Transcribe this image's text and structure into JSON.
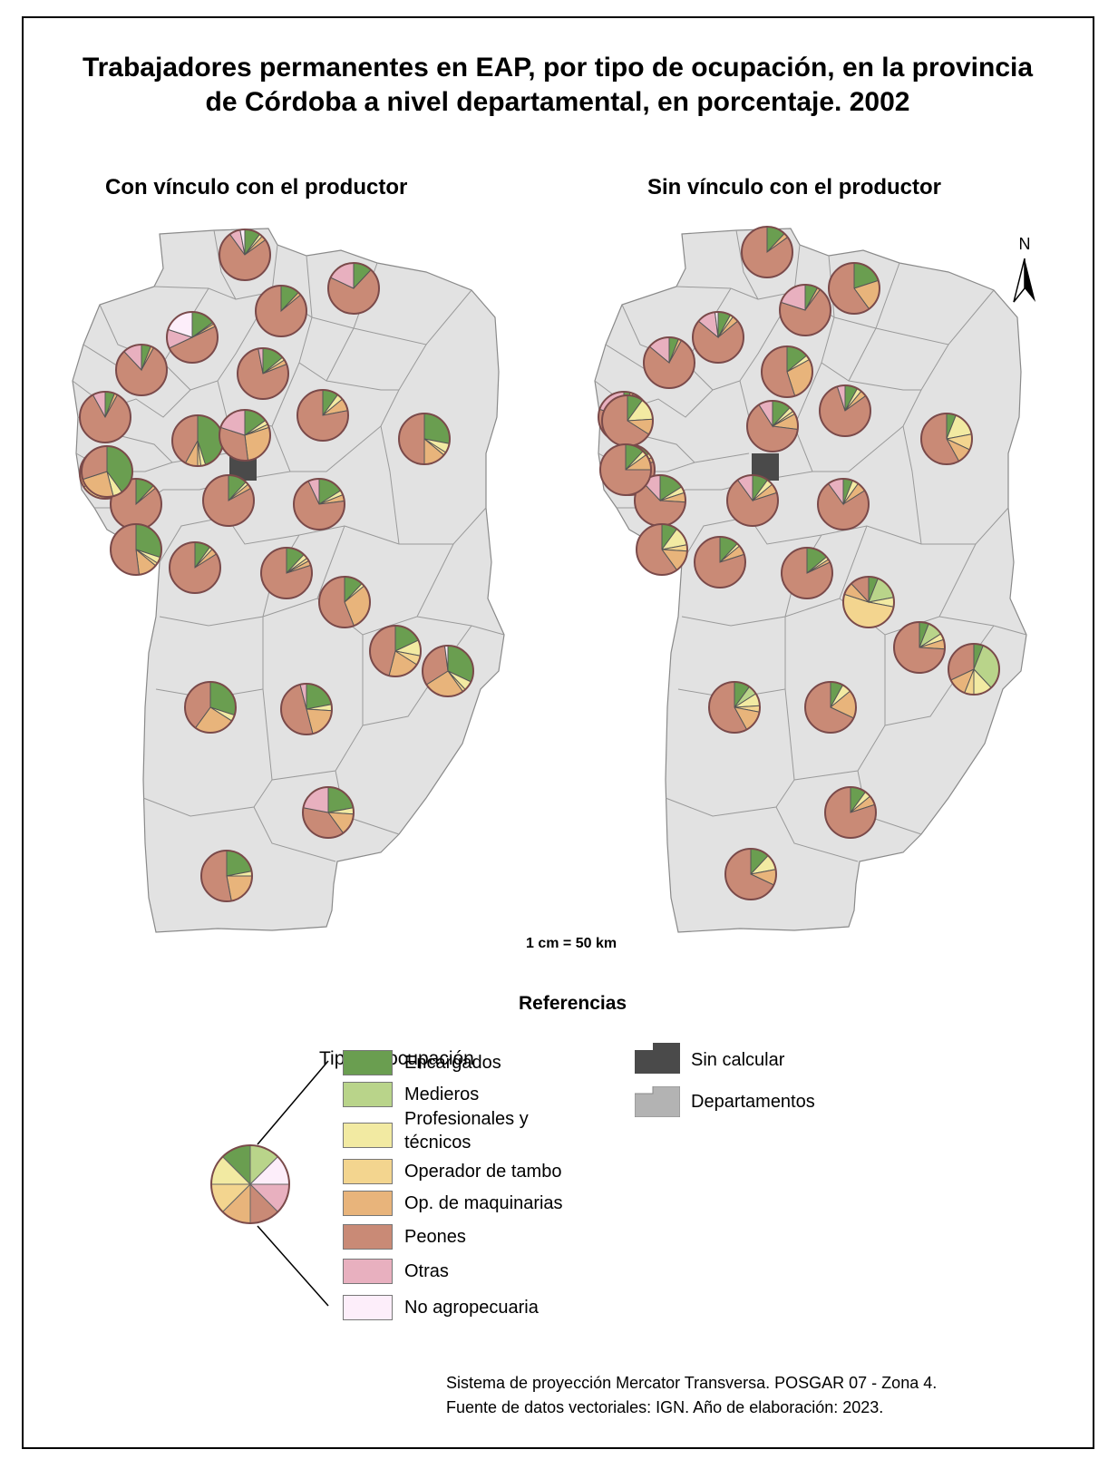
{
  "title_line1": "Trabajadores permanentes en EAP, por tipo de ocupación, en la provincia",
  "title_line2": "de Córdoba a nivel departamental, en porcentaje. 2002",
  "map_left_title": "Con vínculo con el productor",
  "map_right_title": "Sin vínculo con el productor",
  "north_label": "N",
  "scale_label": "1 cm = 50 km",
  "references_title": "Referencias",
  "legend": {
    "title": "Tipo de ocupación",
    "items": [
      {
        "label": "Encargados",
        "color": "#6a9e50"
      },
      {
        "label": "Medieros",
        "color": "#b9d48a"
      },
      {
        "label_line1": "Profesionales y",
        "label_line2": "técnicos",
        "color": "#f2eaa2"
      },
      {
        "label": "Operador de tambo",
        "color": "#f3d58f"
      },
      {
        "label": "Op. de maquinarias",
        "color": "#e8b47b"
      },
      {
        "label": "Peones",
        "color": "#c98a76"
      },
      {
        "label": "Otras",
        "color": "#e8b0bf"
      },
      {
        "label": "No agropecuaria",
        "color": "#fdeefa"
      }
    ],
    "other": [
      {
        "label": "Sin calcular",
        "color": "#4a4a4a"
      },
      {
        "label": "Departamentos",
        "color": "#b3b3b3"
      }
    ]
  },
  "source_line1": "Sistema de proyección Mercator Transversa. POSGAR 07 - Zona 4.",
  "source_line2": "Fuente de datos vectoriales: IGN. Año de elaboración: 2023.",
  "pies_left": [
    {
      "v": [
        10,
        0,
        2,
        0,
        3,
        75,
        7,
        3
      ]
    },
    {
      "v": [
        12,
        0,
        0,
        0,
        0,
        70,
        18,
        0
      ]
    },
    {
      "v": [
        12,
        0,
        0,
        0,
        2,
        86,
        0,
        0
      ]
    },
    {
      "v": [
        15,
        0,
        1,
        0,
        2,
        50,
        12,
        20
      ]
    },
    {
      "v": [
        6,
        0,
        0,
        0,
        2,
        80,
        12,
        0
      ]
    },
    {
      "v": [
        14,
        0,
        2,
        0,
        3,
        78,
        3,
        0
      ]
    },
    {
      "v": [
        6,
        0,
        0,
        0,
        2,
        84,
        8,
        0
      ]
    },
    {
      "v": [
        45,
        0,
        3,
        2,
        8,
        42,
        0,
        0
      ]
    },
    {
      "v": [
        15,
        0,
        3,
        2,
        28,
        32,
        20,
        0
      ]
    },
    {
      "v": [
        10,
        0,
        4,
        0,
        8,
        78,
        0,
        0
      ]
    },
    {
      "v": [
        28,
        0,
        6,
        2,
        14,
        50,
        0,
        0
      ]
    },
    {
      "v": [
        27,
        13,
        8,
        18,
        20,
        14,
        0,
        0
      ]
    },
    {
      "v": [
        12,
        0,
        0,
        0,
        2,
        86,
        0,
        0
      ]
    },
    {
      "v": [
        12,
        0,
        2,
        0,
        3,
        83,
        0,
        0
      ]
    },
    {
      "v": [
        16,
        0,
        3,
        0,
        4,
        70,
        7,
        0
      ]
    },
    {
      "v": [
        30,
        0,
        4,
        2,
        12,
        52,
        0,
        0
      ]
    },
    {
      "v": [
        10,
        0,
        2,
        0,
        4,
        84,
        0,
        0
      ]
    },
    {
      "v": [
        12,
        0,
        3,
        2,
        3,
        80,
        0,
        0
      ]
    },
    {
      "v": [
        12,
        0,
        2,
        0,
        30,
        56,
        0,
        0
      ]
    },
    {
      "v": [
        18,
        0,
        10,
        6,
        20,
        46,
        0,
        0
      ]
    },
    {
      "v": [
        32,
        0,
        6,
        2,
        26,
        32,
        0,
        2
      ]
    },
    {
      "v": [
        30,
        0,
        4,
        0,
        26,
        40,
        0,
        0
      ]
    },
    {
      "v": [
        22,
        0,
        4,
        0,
        20,
        50,
        4,
        0
      ]
    },
    {
      "v": [
        22,
        0,
        4,
        0,
        14,
        38,
        22,
        0
      ]
    },
    {
      "v": [
        22,
        0,
        3,
        0,
        22,
        53,
        0,
        0
      ]
    },
    {
      "v": [
        40,
        0,
        6,
        0,
        24,
        30,
        0,
        0
      ]
    }
  ],
  "pies_right": [
    {
      "v": [
        12,
        0,
        0,
        0,
        3,
        85,
        0,
        0
      ]
    },
    {
      "v": [
        20,
        0,
        0,
        0,
        20,
        60,
        0,
        0
      ]
    },
    {
      "v": [
        8,
        0,
        0,
        0,
        2,
        70,
        20,
        0
      ]
    },
    {
      "v": [
        8,
        0,
        2,
        0,
        4,
        72,
        12,
        2
      ]
    },
    {
      "v": [
        6,
        0,
        0,
        0,
        2,
        78,
        14,
        0
      ]
    },
    {
      "v": [
        14,
        0,
        3,
        0,
        28,
        55,
        0,
        0
      ]
    },
    {
      "v": [
        4,
        0,
        0,
        0,
        2,
        74,
        20,
        0
      ]
    },
    {
      "v": [
        12,
        0,
        3,
        2,
        10,
        64,
        9,
        0
      ]
    },
    {
      "v": [
        8,
        0,
        3,
        0,
        4,
        80,
        5,
        0
      ]
    },
    {
      "v": [
        6,
        0,
        16,
        10,
        10,
        58,
        0,
        0
      ]
    },
    {
      "v": [
        6,
        16,
        6,
        52,
        8,
        12,
        0,
        0
      ]
    },
    {
      "v": [
        14,
        0,
        3,
        0,
        3,
        80,
        0,
        0
      ]
    },
    {
      "v": [
        16,
        0,
        4,
        0,
        6,
        62,
        12,
        0
      ]
    },
    {
      "v": [
        10,
        0,
        4,
        0,
        6,
        70,
        10,
        0
      ]
    },
    {
      "v": [
        6,
        0,
        4,
        0,
        6,
        74,
        10,
        0
      ]
    },
    {
      "v": [
        10,
        0,
        12,
        4,
        14,
        60,
        0,
        0
      ]
    },
    {
      "v": [
        12,
        0,
        2,
        0,
        6,
        80,
        0,
        0
      ]
    },
    {
      "v": [
        14,
        0,
        2,
        0,
        2,
        82,
        0,
        0
      ]
    },
    {
      "v": [
        6,
        10,
        4,
        0,
        6,
        74,
        0,
        0
      ]
    },
    {
      "v": [
        6,
        32,
        12,
        6,
        12,
        32,
        0,
        0
      ]
    },
    {
      "v": [
        10,
        6,
        8,
        4,
        14,
        58,
        0,
        0
      ]
    },
    {
      "v": [
        8,
        0,
        6,
        0,
        18,
        68,
        0,
        0
      ]
    },
    {
      "v": [
        10,
        0,
        4,
        0,
        6,
        80,
        0,
        0
      ]
    },
    {
      "v": [
        12,
        0,
        10,
        0,
        10,
        68,
        0,
        0
      ]
    },
    {
      "v": [
        10,
        0,
        14,
        0,
        10,
        66,
        0,
        0
      ]
    },
    {
      "v": [
        12,
        0,
        3,
        0,
        10,
        75,
        0,
        0
      ]
    }
  ]
}
